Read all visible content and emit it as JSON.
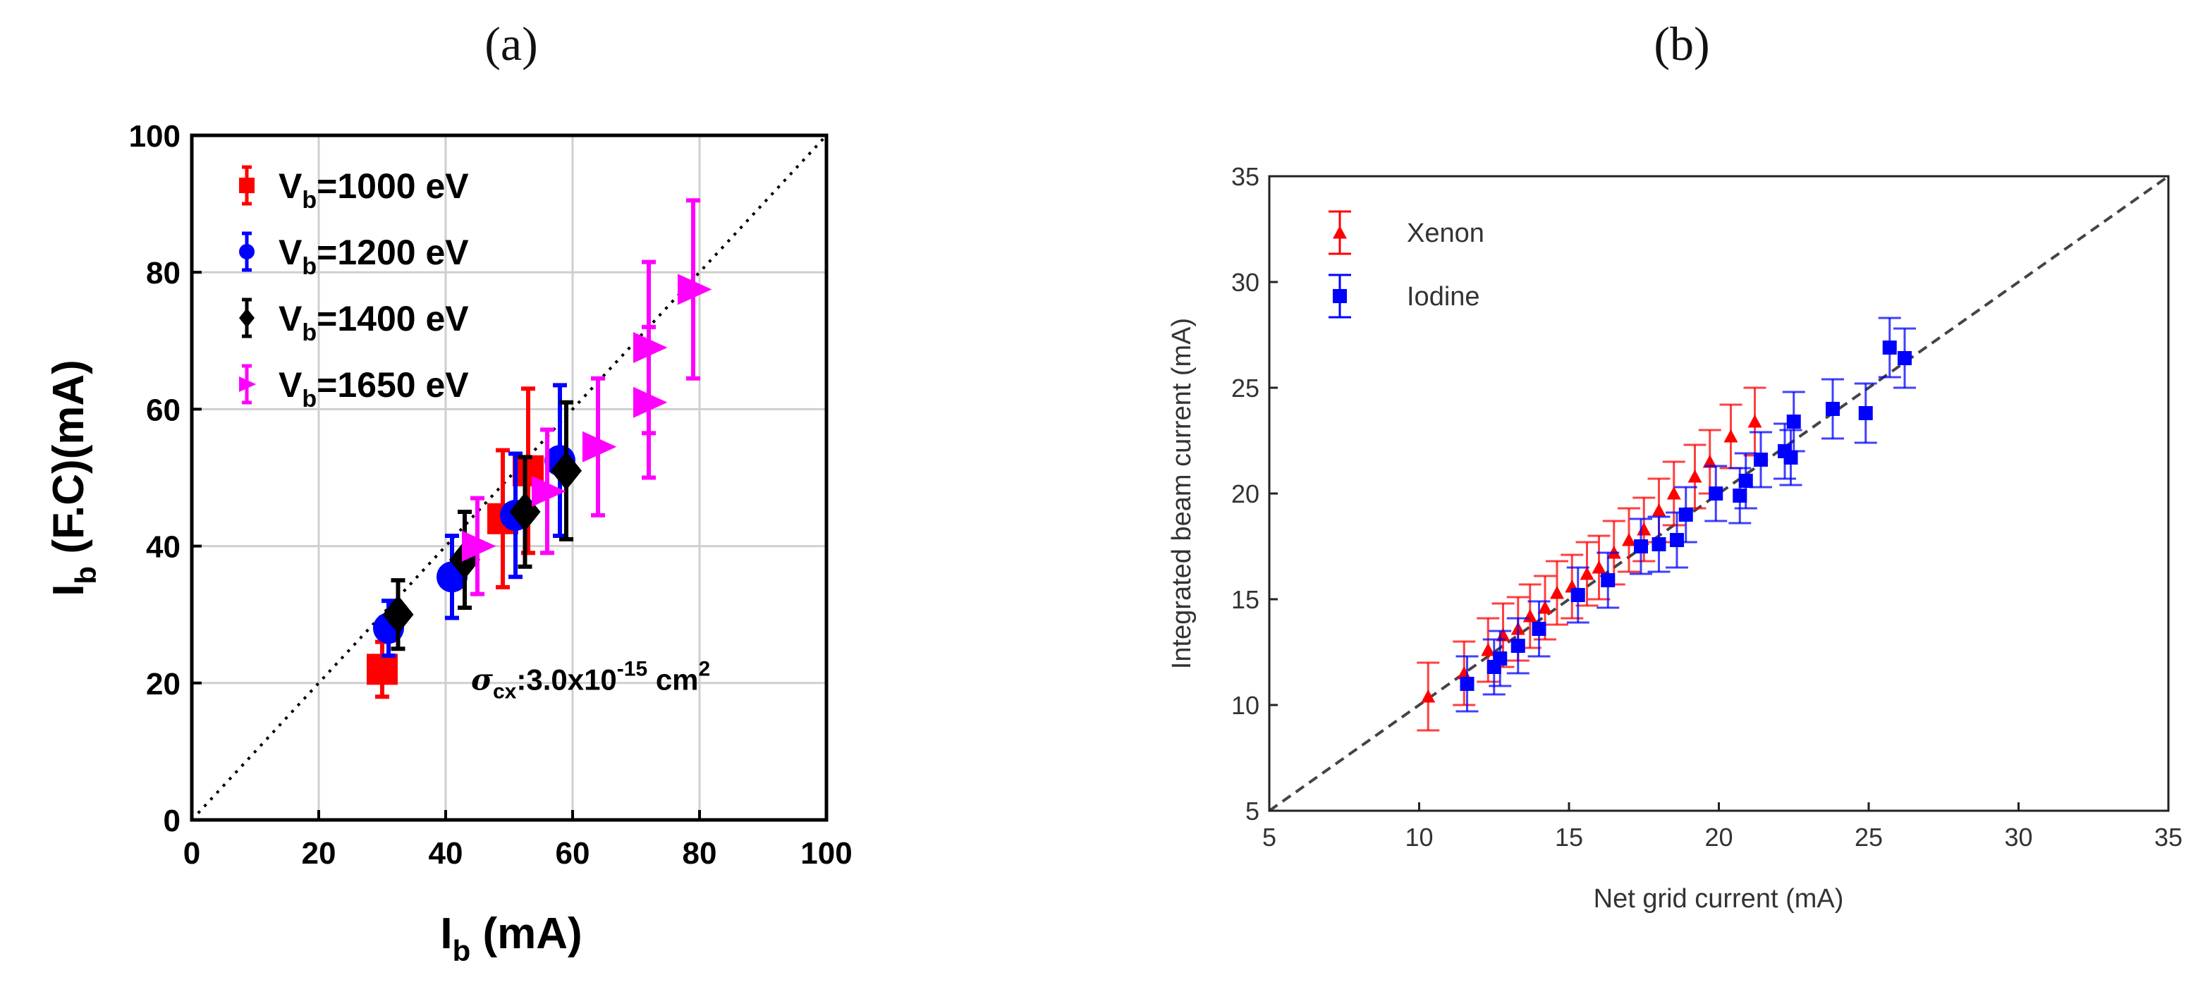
{
  "panels": {
    "a_label": "(a)",
    "b_label": "(b)"
  },
  "chart_data": [
    {
      "type": "scatter",
      "xlim": [
        0,
        100
      ],
      "ylim": [
        0,
        100
      ],
      "xticks": [
        0,
        20,
        40,
        60,
        80,
        100
      ],
      "yticks": [
        0,
        20,
        40,
        60,
        80,
        100
      ],
      "grid": true,
      "legend_position": "top-left",
      "xlabel_main": "I",
      "xlabel_sub": "b",
      "xlabel_rest": " (mA)",
      "ylabel_main": "I",
      "ylabel_sub": "b",
      "ylabel_rest": " (F.C)(mA)",
      "reference_line": "y = x (dotted)",
      "annotation": {
        "symbol": "σ",
        "sub": "cx",
        "text": ":3.0x10",
        "exp": "-15",
        "unit": " cm",
        "unit_exp": "2",
        "at": [
          44,
          19
        ]
      },
      "series": [
        {
          "legend_main": "V",
          "legend_sub": "b",
          "legend_rest": "=1000 eV",
          "color": "#ff0000",
          "marker": "square",
          "points": [
            {
              "x": 30,
              "y": 22,
              "err": 4
            },
            {
              "x": 49,
              "y": 44,
              "err": 10
            },
            {
              "x": 53,
              "y": 51,
              "err": 12
            }
          ]
        },
        {
          "legend_main": "V",
          "legend_sub": "b",
          "legend_rest": "=1200 eV",
          "color": "#0000ff",
          "marker": "circle",
          "points": [
            {
              "x": 31,
              "y": 28,
              "err": 4
            },
            {
              "x": 41,
              "y": 35.5,
              "err": 6
            },
            {
              "x": 51,
              "y": 44.5,
              "err": 9
            },
            {
              "x": 58,
              "y": 52.5,
              "err": 11
            }
          ]
        },
        {
          "legend_main": "V",
          "legend_sub": "b",
          "legend_rest": "=1400 eV",
          "color": "#000000",
          "marker": "diamond",
          "points": [
            {
              "x": 32.5,
              "y": 30,
              "err": 5
            },
            {
              "x": 43,
              "y": 38,
              "err": 7
            },
            {
              "x": 52.5,
              "y": 45,
              "err": 8
            },
            {
              "x": 59,
              "y": 51,
              "err": 10
            }
          ]
        },
        {
          "legend_main": "V",
          "legend_sub": "b",
          "legend_rest": "=1650 eV",
          "color": "#ff00ff",
          "marker": "triangle-right",
          "points": [
            {
              "x": 45,
              "y": 40,
              "err": 7
            },
            {
              "x": 56,
              "y": 48,
              "err": 9
            },
            {
              "x": 64,
              "y": 54.5,
              "err": 10
            },
            {
              "x": 72,
              "y": 61,
              "err": 11
            },
            {
              "x": 72,
              "y": 69,
              "err": 12.5
            },
            {
              "x": 79,
              "y": 77.5,
              "err": 13
            }
          ]
        }
      ]
    },
    {
      "type": "scatter",
      "xlim": [
        5,
        35
      ],
      "ylim": [
        5,
        35
      ],
      "xticks": [
        5,
        10,
        15,
        20,
        25,
        30,
        35
      ],
      "yticks": [
        5,
        10,
        15,
        20,
        25,
        30,
        35
      ],
      "grid": false,
      "legend_position": "top-left",
      "xlabel": "Net grid current (mA)",
      "ylabel": "Integrated beam current (mA)",
      "reference_line": "y = x (dashed)",
      "series": [
        {
          "name": "Xenon",
          "color": "#ff0000",
          "marker": "triangle-up",
          "points": [
            {
              "x": 10.3,
              "y": 10.4,
              "err": 1.6
            },
            {
              "x": 11.5,
              "y": 11.5,
              "err": 1.5
            },
            {
              "x": 12.3,
              "y": 12.6,
              "err": 1.5
            },
            {
              "x": 12.8,
              "y": 13.3,
              "err": 1.5
            },
            {
              "x": 13.3,
              "y": 13.6,
              "err": 1.5
            },
            {
              "x": 13.7,
              "y": 14.2,
              "err": 1.5
            },
            {
              "x": 14.2,
              "y": 14.6,
              "err": 1.5
            },
            {
              "x": 14.6,
              "y": 15.3,
              "err": 1.5
            },
            {
              "x": 15.1,
              "y": 15.6,
              "err": 1.5
            },
            {
              "x": 15.6,
              "y": 16.2,
              "err": 1.5
            },
            {
              "x": 16.0,
              "y": 16.5,
              "err": 1.5
            },
            {
              "x": 16.5,
              "y": 17.2,
              "err": 1.5
            },
            {
              "x": 17.0,
              "y": 17.8,
              "err": 1.5
            },
            {
              "x": 17.5,
              "y": 18.3,
              "err": 1.5
            },
            {
              "x": 18.0,
              "y": 19.2,
              "err": 1.5
            },
            {
              "x": 18.5,
              "y": 20.0,
              "err": 1.5
            },
            {
              "x": 19.2,
              "y": 20.8,
              "err": 1.5
            },
            {
              "x": 19.7,
              "y": 21.5,
              "err": 1.5
            },
            {
              "x": 20.4,
              "y": 22.7,
              "err": 1.5
            },
            {
              "x": 21.2,
              "y": 23.4,
              "err": 1.6
            }
          ]
        },
        {
          "name": "Iodine",
          "color": "#0000ff",
          "marker": "square",
          "points": [
            {
              "x": 11.6,
              "y": 11.0,
              "err": 1.3
            },
            {
              "x": 12.5,
              "y": 11.8,
              "err": 1.3
            },
            {
              "x": 12.7,
              "y": 12.2,
              "err": 1.3
            },
            {
              "x": 13.3,
              "y": 12.8,
              "err": 1.3
            },
            {
              "x": 14.0,
              "y": 13.6,
              "err": 1.3
            },
            {
              "x": 15.3,
              "y": 15.2,
              "err": 1.3
            },
            {
              "x": 16.3,
              "y": 15.9,
              "err": 1.3
            },
            {
              "x": 17.4,
              "y": 17.5,
              "err": 1.3
            },
            {
              "x": 18.0,
              "y": 17.6,
              "err": 1.3
            },
            {
              "x": 18.6,
              "y": 17.8,
              "err": 1.3
            },
            {
              "x": 18.9,
              "y": 19.0,
              "err": 1.3
            },
            {
              "x": 19.9,
              "y": 20.0,
              "err": 1.3
            },
            {
              "x": 20.7,
              "y": 19.9,
              "err": 1.3
            },
            {
              "x": 20.9,
              "y": 20.6,
              "err": 1.3
            },
            {
              "x": 21.4,
              "y": 21.6,
              "err": 1.3
            },
            {
              "x": 22.2,
              "y": 22.0,
              "err": 1.3
            },
            {
              "x": 22.4,
              "y": 21.7,
              "err": 1.3
            },
            {
              "x": 22.5,
              "y": 23.4,
              "err": 1.4
            },
            {
              "x": 23.8,
              "y": 24.0,
              "err": 1.4
            },
            {
              "x": 24.9,
              "y": 23.8,
              "err": 1.4
            },
            {
              "x": 25.7,
              "y": 26.9,
              "err": 1.4
            },
            {
              "x": 26.2,
              "y": 26.4,
              "err": 1.4
            }
          ]
        }
      ]
    }
  ]
}
